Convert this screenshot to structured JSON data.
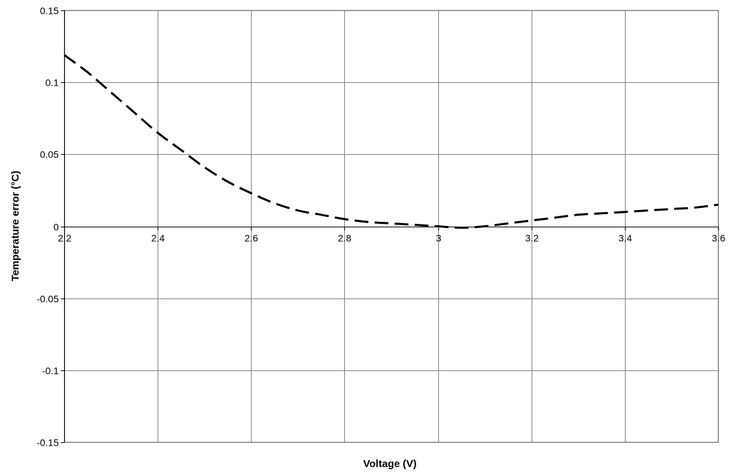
{
  "chart_data": {
    "type": "line",
    "xlabel": "Voltage (V)",
    "ylabel": "Temperature error (°C)",
    "xlim": [
      2.2,
      3.6
    ],
    "ylim": [
      -0.15,
      0.15
    ],
    "x_ticks": [
      2.2,
      2.4,
      2.6,
      2.8,
      3.0,
      3.2,
      3.4,
      3.6
    ],
    "x_tick_labels": [
      "2.2",
      "2.4",
      "2.6",
      "2.8",
      "3",
      "3.2",
      "3.4",
      "3.6"
    ],
    "y_ticks": [
      0.15,
      0.1,
      0.05,
      0,
      -0.05,
      -0.1,
      -0.15
    ],
    "y_tick_labels": [
      "0.15",
      "0.1",
      "0.05",
      "0",
      "-0.05",
      "-0.1",
      "-0.15"
    ],
    "grid": true,
    "legend": "none",
    "series": [
      {
        "line_style": "dashed",
        "color": "#000000",
        "x": [
          2.2,
          2.25,
          2.3,
          2.35,
          2.4,
          2.45,
          2.5,
          2.55,
          2.6,
          2.65,
          2.7,
          2.75,
          2.8,
          2.85,
          2.9,
          2.95,
          3.0,
          3.05,
          3.1,
          3.15,
          3.2,
          3.25,
          3.3,
          3.35,
          3.4,
          3.45,
          3.5,
          3.55,
          3.6
        ],
        "y": [
          0.119,
          0.107,
          0.093,
          0.079,
          0.065,
          0.053,
          0.041,
          0.031,
          0.023,
          0.016,
          0.011,
          0.008,
          0.005,
          0.003,
          0.002,
          0.001,
          0.0,
          -0.001,
          0.0,
          0.002,
          0.004,
          0.006,
          0.008,
          0.009,
          0.01,
          0.011,
          0.012,
          0.013,
          0.015
        ]
      }
    ]
  }
}
